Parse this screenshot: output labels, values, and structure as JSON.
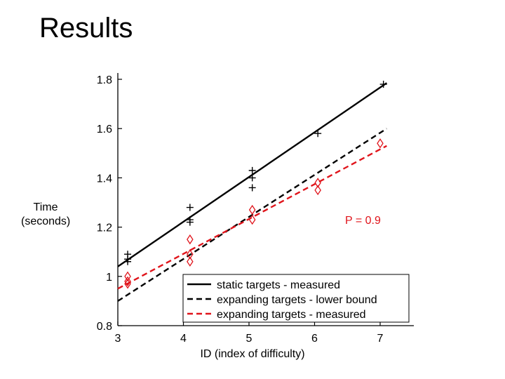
{
  "page": {
    "title": "Results"
  },
  "chart_data": {
    "type": "line",
    "title": "",
    "xlabel": "ID (index of difficulty)",
    "ylabel": "Time (seconds)",
    "xlim": [
      3,
      7
    ],
    "ylim": [
      0.8,
      1.8
    ],
    "xticks": [
      3,
      4,
      5,
      6,
      7
    ],
    "yticks": [
      0.8,
      1,
      1.2,
      1.4,
      1.6,
      1.8
    ],
    "ytick_labels": [
      "0.8",
      "1",
      "1.2",
      "1.4",
      "1.6",
      "1.8"
    ],
    "xtick_labels": [
      "3",
      "4",
      "5",
      "6",
      "7"
    ],
    "annotation": "P = 0.9",
    "legend_position": "bottom-right",
    "grid": false,
    "series": [
      {
        "name": "static targets - measured",
        "kind": "fit-line",
        "style": "solid",
        "color": "#000000",
        "x": [
          3,
          7.1
        ],
        "y": [
          1.04,
          1.785
        ]
      },
      {
        "name": "expanding targets - lower bound",
        "kind": "fit-line",
        "style": "dashed",
        "color": "#000000",
        "x": [
          3,
          7.1
        ],
        "y": [
          0.9,
          1.6
        ]
      },
      {
        "name": "expanding targets - measured",
        "kind": "fit-line",
        "style": "dashed",
        "color": "#e0141b",
        "x": [
          3,
          7.1
        ],
        "y": [
          0.95,
          1.53
        ]
      }
    ],
    "points": [
      {
        "series": "static targets - measured",
        "marker": "plus",
        "color": "#000000",
        "x": [
          3.15,
          3.15,
          3.15,
          4.1,
          4.1,
          4.1,
          5.05,
          5.05,
          5.05,
          6.05,
          7.05
        ],
        "y": [
          1.09,
          1.07,
          1.06,
          1.28,
          1.23,
          1.22,
          1.43,
          1.4,
          1.36,
          1.58,
          1.78
        ]
      },
      {
        "series": "expanding targets - measured",
        "marker": "diamond",
        "color": "#e0141b",
        "x": [
          3.15,
          3.15,
          3.15,
          4.1,
          4.1,
          4.1,
          5.05,
          5.05,
          6.05,
          6.05,
          7.0
        ],
        "y": [
          1.0,
          0.98,
          0.97,
          1.15,
          1.09,
          1.06,
          1.27,
          1.23,
          1.38,
          1.35,
          1.54
        ]
      }
    ]
  }
}
